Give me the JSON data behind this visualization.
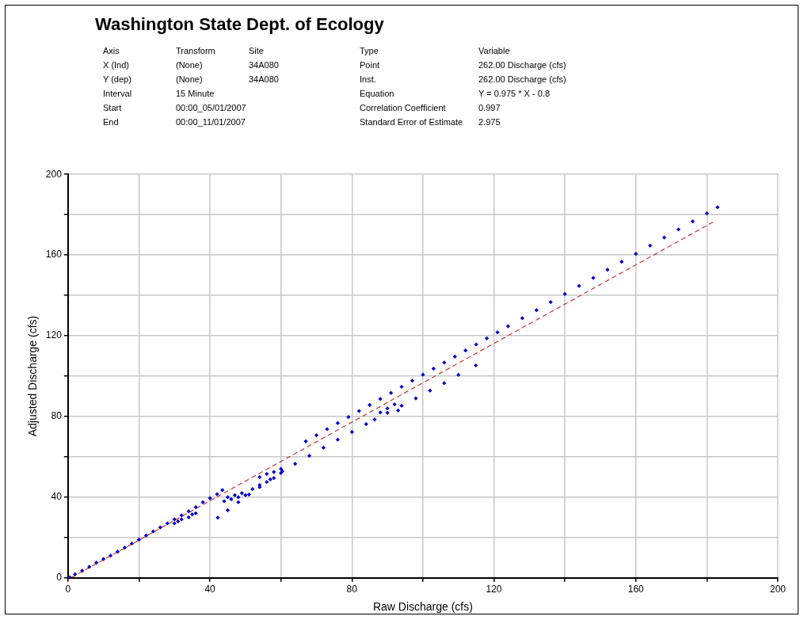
{
  "chart_data": {
    "type": "scatter",
    "title": "Washington State Dept. of Ecology",
    "annotations": [
      "Axis",
      "Transform",
      "Site",
      "Type",
      "Variable",
      "X (Ind)",
      "(None)",
      "34A080",
      "Point",
      "262.00 Discharge (cfs)",
      "Y (dep)",
      "(None)",
      "34A080",
      "Inst.",
      "262.00 Discharge (cfs)",
      "Interval",
      "15 Minute",
      "Equation",
      "Y = 0.975 * X - 0.8",
      "Start",
      "00:00_05/01/2007",
      "Correlation Coefficient",
      "0.997",
      "End",
      "00:00_11/01/2007",
      "Standard Error of Estimate",
      "2.975"
    ],
    "xlabel": "Raw Discharge (cfs)",
    "ylabel": "Adjusted Discharge (cfs)",
    "xlim": [
      0,
      200
    ],
    "ylim": [
      0,
      200
    ],
    "xticks": [
      0,
      {
        "value": 20,
        "label": null
      },
      40,
      {
        "value": 60,
        "label": null
      },
      80,
      {
        "value": 100,
        "label": null
      },
      120,
      {
        "value": 140,
        "label": null
      },
      160,
      {
        "value": 180,
        "label": null
      },
      200
    ],
    "yticks": [
      0,
      {
        "value": 20,
        "label": null
      },
      40,
      {
        "value": 60,
        "label": null
      },
      80,
      {
        "value": 100,
        "label": null
      },
      120,
      {
        "value": 140,
        "label": null
      },
      160,
      {
        "value": 180,
        "label": null
      },
      200
    ],
    "grid": true,
    "legend": false,
    "marker": "diamond",
    "series": [
      {
        "color": "#0000cc",
        "x": [
          0.5,
          2,
          4,
          6,
          8,
          10,
          12,
          14,
          16,
          18,
          20,
          22,
          24,
          26,
          28,
          30,
          32,
          34,
          36,
          38,
          40,
          42,
          43.5,
          30,
          31,
          32,
          34,
          35,
          36,
          44,
          45,
          46,
          47,
          48,
          49,
          50,
          52,
          54,
          56,
          58,
          60,
          54,
          56,
          58,
          60,
          42.2,
          45,
          48,
          51,
          54,
          57,
          60.4,
          64,
          68,
          72,
          76,
          80,
          84,
          86.4,
          90,
          94,
          98,
          102,
          106,
          110,
          114.9,
          88,
          90,
          92,
          93,
          67,
          70,
          73,
          76,
          79,
          82,
          85,
          88,
          91,
          94,
          97,
          100,
          103,
          106,
          109,
          112,
          115,
          118,
          121,
          124,
          128,
          132,
          136,
          140,
          144,
          148,
          152,
          156,
          160,
          164,
          168,
          172,
          176,
          180,
          183
        ],
        "values": [
          0.3,
          1.8,
          3.6,
          5.5,
          7.5,
          9.3,
          11,
          13,
          15,
          17,
          19,
          21,
          23,
          25,
          27,
          29,
          31,
          33,
          35,
          37.5,
          39.5,
          41.5,
          43.5,
          27,
          28,
          29,
          30,
          31.5,
          32,
          38,
          40,
          39,
          41,
          40,
          42,
          41,
          44,
          46,
          47.5,
          49.5,
          52,
          50,
          51.5,
          52.5,
          54,
          29.8,
          33.5,
          37.5,
          41.3,
          45,
          48.8,
          52.8,
          56.5,
          60.5,
          64.5,
          68.5,
          72.3,
          76.2,
          78.5,
          81.8,
          85.3,
          89,
          92.8,
          96.5,
          100.6,
          105.3,
          82,
          84,
          86,
          83,
          67.7,
          70.7,
          73.7,
          76.7,
          79.7,
          82.7,
          85.7,
          88.7,
          91.7,
          94.7,
          97.7,
          100.7,
          103.7,
          106.7,
          109.7,
          112.7,
          115.7,
          118.7,
          121.7,
          124.7,
          128.7,
          132.7,
          136.7,
          140.7,
          144.7,
          148.7,
          152.7,
          156.7,
          160.6,
          164.7,
          168.7,
          172.7,
          176.7,
          180.7,
          183.7
        ]
      },
      {
        "type": "line",
        "color": "#cc3333",
        "line_style": "dashed",
        "marker": "none",
        "x": [
          1,
          182
        ],
        "values": [
          0.2,
          176.6
        ]
      }
    ]
  }
}
